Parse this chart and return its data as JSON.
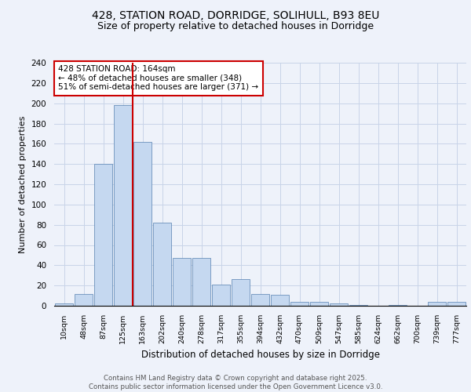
{
  "title1": "428, STATION ROAD, DORRIDGE, SOLIHULL, B93 8EU",
  "title2": "Size of property relative to detached houses in Dorridge",
  "xlabel": "Distribution of detached houses by size in Dorridge",
  "ylabel": "Number of detached properties",
  "categories": [
    "10sqm",
    "48sqm",
    "87sqm",
    "125sqm",
    "163sqm",
    "202sqm",
    "240sqm",
    "278sqm",
    "317sqm",
    "355sqm",
    "394sqm",
    "432sqm",
    "470sqm",
    "509sqm",
    "547sqm",
    "585sqm",
    "624sqm",
    "662sqm",
    "700sqm",
    "739sqm",
    "777sqm"
  ],
  "values": [
    2,
    12,
    140,
    198,
    162,
    82,
    47,
    47,
    21,
    26,
    12,
    11,
    4,
    4,
    2,
    1,
    0,
    1,
    0,
    4,
    4
  ],
  "bar_color": "#c5d8f0",
  "bar_edge_color": "#5580b0",
  "vline_x_index": 4,
  "vline_color": "#cc0000",
  "annotation_text": "428 STATION ROAD: 164sqm\n← 48% of detached houses are smaller (348)\n51% of semi-detached houses are larger (371) →",
  "annotation_box_color": "#ffffff",
  "annotation_box_edge": "#cc0000",
  "ylim": [
    0,
    240
  ],
  "yticks": [
    0,
    20,
    40,
    60,
    80,
    100,
    120,
    140,
    160,
    180,
    200,
    220,
    240
  ],
  "grid_color": "#c8d4e8",
  "footer": "Contains HM Land Registry data © Crown copyright and database right 2025.\nContains public sector information licensed under the Open Government Licence v3.0.",
  "background_color": "#eef2fa",
  "plot_background": "#eef2fa",
  "title_fontsize": 10,
  "subtitle_fontsize": 9
}
